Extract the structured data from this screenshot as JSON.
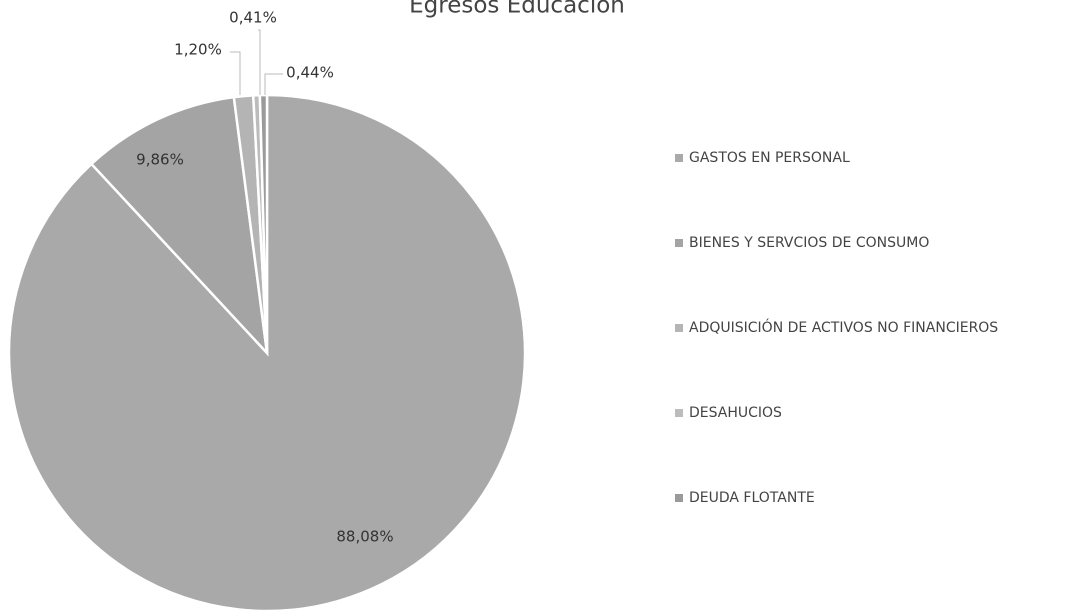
{
  "chart_data": {
    "type": "pie",
    "title": "Egresos Educación",
    "categories": [
      "GASTOS EN PERSONAL",
      "BIENES Y SERVCIOS DE CONSUMO",
      "ADQUISICIÓN DE ACTIVOS NO FINANCIEROS",
      "DESAHUCIOS",
      "DEUDA FLOTANTE"
    ],
    "values": [
      88.08,
      9.86,
      1.2,
      0.41,
      0.44
    ],
    "value_labels": [
      "88,08%",
      "9,86%",
      "1,20%",
      "0,41%",
      "0,44%"
    ],
    "colors": [
      "#a9a9a9",
      "#a4a4a4",
      "#b4b4b4",
      "#bcbcbc",
      "#9a9a9a"
    ],
    "legend": "right"
  }
}
